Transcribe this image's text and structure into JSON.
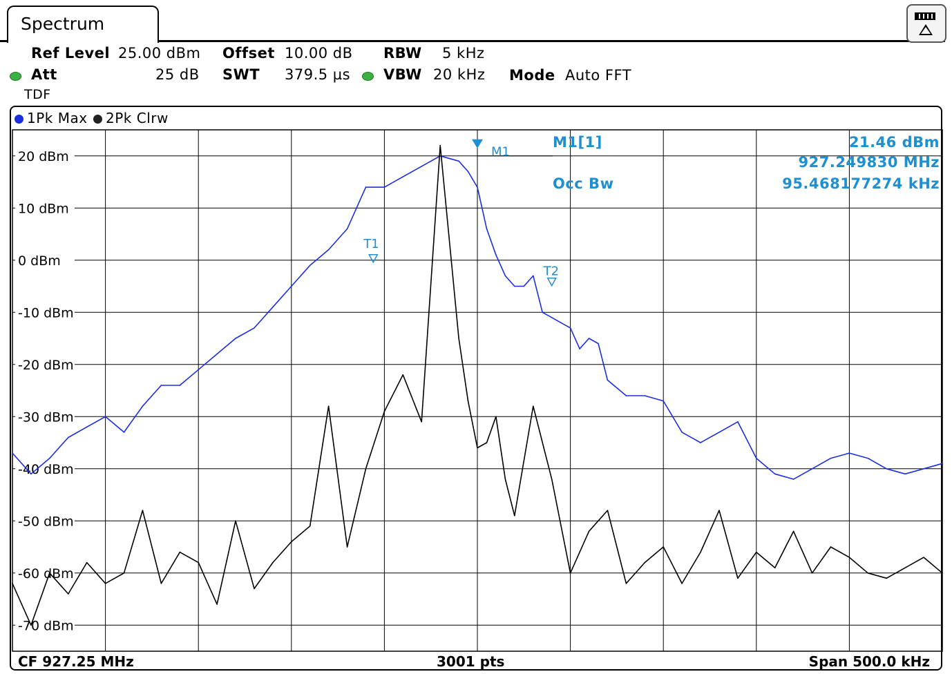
{
  "tab": {
    "label": "Spectrum"
  },
  "settings": {
    "ref_level_label": "Ref Level",
    "ref_level_value": "25.00 dBm",
    "offset_label": "Offset",
    "offset_value": "10.00 dB",
    "rbw_label": "RBW",
    "rbw_value": "5 kHz",
    "att_label": "Att",
    "att_value": "25 dB",
    "swt_label": "SWT",
    "swt_value": "379.5 µs",
    "vbw_label": "VBW",
    "vbw_value": "20 kHz",
    "mode_label": "Mode",
    "mode_value": "Auto FFT",
    "tdf": "TDF"
  },
  "traces": {
    "trace1": "1Pk Max",
    "trace2": "2Pk Clrw"
  },
  "marker": {
    "name": "M1[1]",
    "level": "21.46 dBm",
    "freq": "927.249830 MHz",
    "occbw_label": "Occ Bw",
    "occbw_value": "95.468177274 kHz",
    "m1_tag": "M1",
    "t1_tag": "T1",
    "t2_tag": "T2"
  },
  "footer": {
    "cf": "CF 927.25 MHz",
    "pts": "3001 pts",
    "span": "Span 500.0 kHz"
  },
  "colors": {
    "trace1": "#1a2ee0",
    "trace2": "#000000",
    "marker": "#1e8fd0"
  },
  "chart_data": {
    "type": "line",
    "x_center_mhz": 927.25,
    "x_span_khz": 500.0,
    "x_unit": "kHz offset from CF",
    "xlim": [
      -250,
      250
    ],
    "ylim": [
      -75,
      25
    ],
    "y_ticks": [
      20,
      10,
      0,
      -10,
      -20,
      -30,
      -40,
      -50,
      -60,
      -70
    ],
    "y_tick_labels": [
      "20 dBm",
      "10 dBm",
      "0 dBm",
      "-10 dBm",
      "-20 dBm",
      "-30 dBm",
      "-40 dBm",
      "-50 dBm",
      "-60 dBm",
      "-70 dBm"
    ],
    "grid": true,
    "series": [
      {
        "name": "1Pk Max",
        "x": [
          -250,
          -240,
          -230,
          -220,
          -210,
          -200,
          -190,
          -180,
          -170,
          -160,
          -150,
          -140,
          -130,
          -120,
          -110,
          -100,
          -90,
          -80,
          -70,
          -60,
          -50,
          -40,
          -30,
          -20,
          -10,
          -5,
          0,
          5,
          10,
          15,
          20,
          25,
          30,
          35,
          40,
          45,
          50,
          55,
          60,
          65,
          70,
          80,
          90,
          100,
          110,
          120,
          130,
          140,
          150,
          160,
          170,
          180,
          190,
          200,
          210,
          220,
          230,
          240,
          250
        ],
        "y": [
          -37,
          -41,
          -38,
          -34,
          -32,
          -30,
          -33,
          -28,
          -24,
          -24,
          -21,
          -18,
          -15,
          -13,
          -9,
          -5,
          -1,
          2,
          6,
          14,
          14,
          16,
          18,
          20,
          19,
          17,
          14,
          6,
          1,
          -3,
          -5,
          -5,
          -3,
          -10,
          -11,
          -12,
          -13,
          -17,
          -15,
          -16,
          -23,
          -26,
          -26,
          -27,
          -33,
          -35,
          -33,
          -31,
          -38,
          -41,
          -42,
          -40,
          -38,
          -37,
          -38,
          -40,
          -41,
          -40,
          -39
        ]
      },
      {
        "name": "2Pk Clrw",
        "x": [
          -250,
          -240,
          -230,
          -220,
          -210,
          -200,
          -190,
          -180,
          -170,
          -160,
          -150,
          -140,
          -130,
          -120,
          -110,
          -100,
          -90,
          -80,
          -70,
          -60,
          -50,
          -40,
          -30,
          -20,
          -10,
          -5,
          0,
          5,
          10,
          15,
          20,
          30,
          40,
          50,
          60,
          70,
          80,
          90,
          100,
          110,
          120,
          130,
          140,
          150,
          160,
          170,
          180,
          190,
          200,
          210,
          220,
          230,
          240,
          250
        ],
        "y": [
          -62,
          -70,
          -60,
          -64,
          -58,
          -62,
          -60,
          -48,
          -62,
          -56,
          -58,
          -66,
          -50,
          -63,
          -58,
          -54,
          -51,
          -28,
          -55,
          -40,
          -29,
          -22,
          -31,
          22,
          -15,
          -27,
          -36,
          -35,
          -30,
          -42,
          -49,
          -28,
          -42,
          -60,
          -52,
          -48,
          -62,
          -58,
          -55,
          -62,
          -56,
          -48,
          -61,
          -56,
          -59,
          -52,
          -60,
          -55,
          -57,
          -60,
          -61,
          -59,
          -57,
          -60
        ]
      }
    ]
  }
}
